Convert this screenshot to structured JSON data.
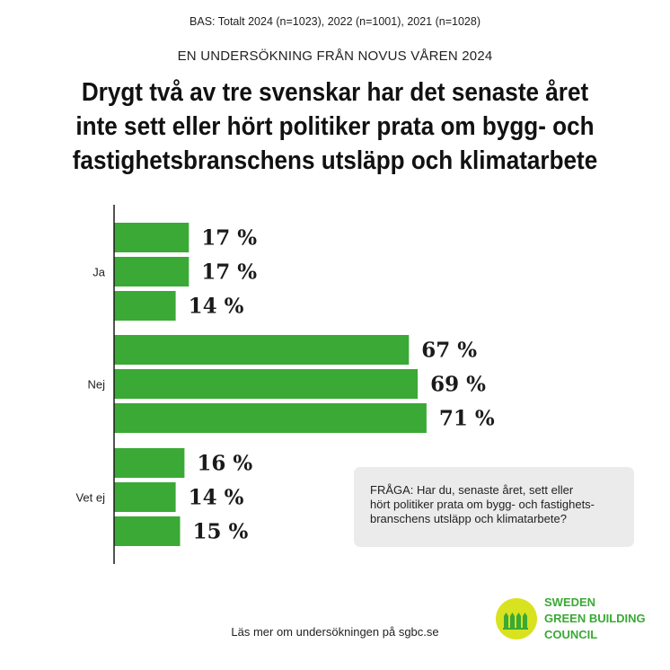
{
  "base_note": "BAS: Totalt 2024 (n=1023), 2022 (n=1001), 2021 (n=1028)",
  "survey_note": "EN UNDERSÖKNING FRÅN NOVUS VÅREN 2024",
  "title_lines": [
    "Drygt två av tre svenskar har det senaste året",
    "inte sett eller hört politiker prata om bygg- och",
    "fastighetsbranschens utsläpp och klimatarbete"
  ],
  "question_lines": [
    "FRÅGA: Har du, senaste året, sett eller",
    "hört politiker prata om bygg- och fastighets-",
    "branschens utsläpp och klimatarbete?"
  ],
  "footer": "Läs mer om undersökningen på sgbc.se",
  "logo_lines": [
    "SWEDEN",
    "GREEN BUILDING",
    "COUNCIL"
  ],
  "colors": {
    "bar": "#3aa935",
    "logo_circle": "#d8e21f",
    "logo_text": "#3aa935",
    "question_bg": "#ebebeb"
  },
  "chart_data": {
    "type": "bar",
    "orientation": "horizontal",
    "categories": [
      "Ja",
      "Nej",
      "Vet ej"
    ],
    "values": [
      [
        17,
        17,
        14
      ],
      [
        67,
        69,
        71
      ],
      [
        16,
        14,
        15
      ]
    ],
    "labels": [
      [
        "17 %",
        "17 %",
        "14 %"
      ],
      [
        "67 %",
        "69 %",
        "71 %"
      ],
      [
        "16 %",
        "14 %",
        "15 %"
      ]
    ],
    "xlim": [
      0,
      100
    ],
    "grid": false
  }
}
